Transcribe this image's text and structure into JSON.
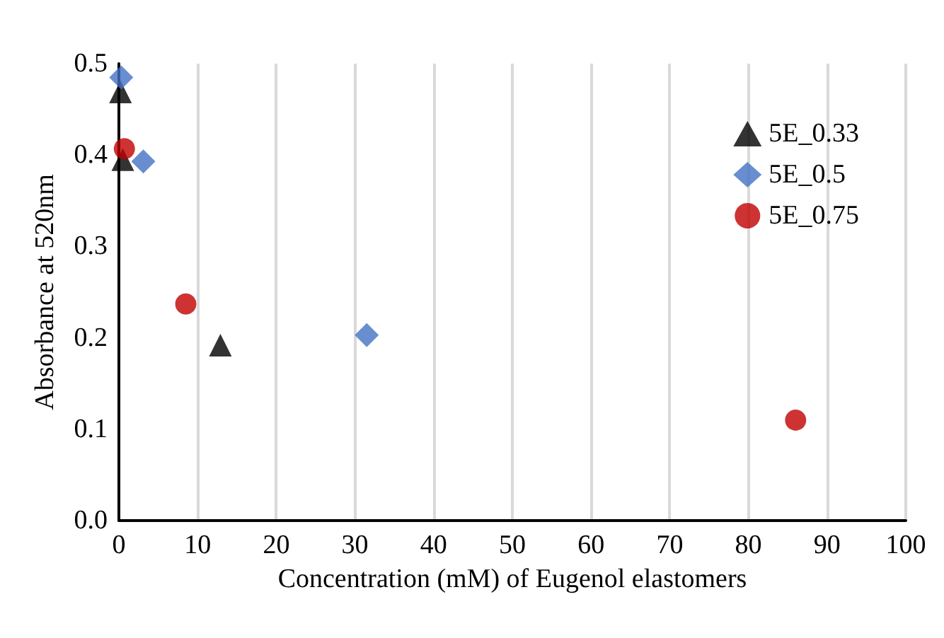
{
  "chart_data": {
    "type": "scatter",
    "xlabel": "Concentration (mM) of Eugenol elastomers",
    "ylabel": "Absorbance at 520nm",
    "xlim": [
      0,
      100
    ],
    "xticks": [
      0,
      10,
      20,
      30,
      40,
      50,
      60,
      70,
      80,
      90,
      100
    ],
    "ylim": [
      0,
      0.5
    ],
    "yticks": [
      "0.0",
      0.1,
      0.2,
      0.3,
      0.4,
      0.5
    ],
    "grid": "x",
    "legend": "top right",
    "series": [
      {
        "name": "5E_0.33",
        "color": "#000000",
        "marker": "triangle",
        "x": [
          0.2,
          0.5,
          12.9
        ],
        "values": [
          0.469,
          0.395,
          0.192
        ]
      },
      {
        "name": "5E_0.5",
        "color": "#4472c4",
        "marker": "diamond",
        "x": [
          0.3,
          3.1,
          31.5
        ],
        "values": [
          0.485,
          0.393,
          0.203
        ]
      },
      {
        "name": "5E_0.75",
        "color": "#c00000",
        "marker": "circle",
        "x": [
          0.7,
          8.5,
          86
        ],
        "values": [
          0.407,
          0.237,
          0.11
        ]
      }
    ]
  }
}
